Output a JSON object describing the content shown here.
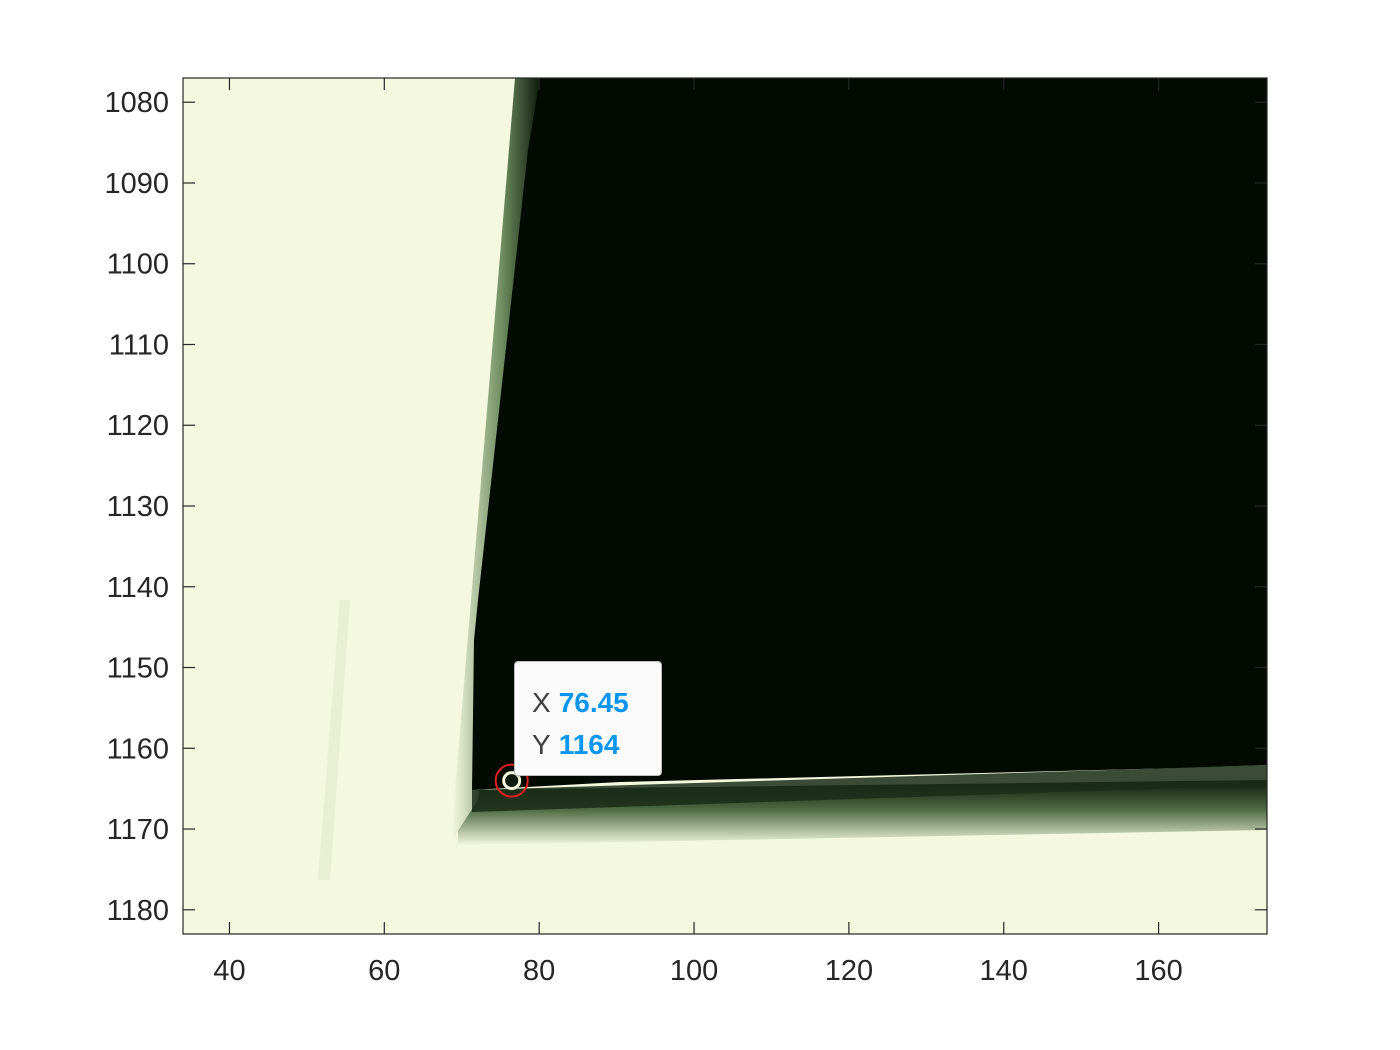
{
  "chart_data": {
    "type": "image",
    "title": "",
    "xlabel": "",
    "ylabel": "",
    "xlim": [
      34,
      174
    ],
    "ylim": [
      1083,
      1077
    ],
    "ylim_note": "y axis reversed (image coordinates)",
    "y_range": [
      1077,
      1183
    ],
    "x_ticks": [
      40,
      60,
      80,
      100,
      120,
      140,
      160
    ],
    "y_ticks": [
      1080,
      1090,
      1100,
      1110,
      1120,
      1130,
      1140,
      1150,
      1160,
      1170,
      1180
    ],
    "x_tick_labels": [
      "40",
      "60",
      "80",
      "100",
      "120",
      "140",
      "160"
    ],
    "y_tick_labels": [
      "1080",
      "1090",
      "1100",
      "1110",
      "1120",
      "1130",
      "1140",
      "1150",
      "1160",
      "1170",
      "1180"
    ],
    "image_regions": {
      "dark_region_corner": {
        "x": 70,
        "y": 1166
      },
      "dark_region_top_edge_x": 79,
      "colors": {
        "light": "#f3f8de",
        "dark": "#020a02",
        "shadow": "#5d7a4f"
      }
    },
    "datatip": {
      "x_label": "X",
      "x_value": "76.45",
      "y_label": "Y",
      "y_value": "1164",
      "point": {
        "x": 76.45,
        "y": 1164
      },
      "value_color": "#0a96f0",
      "marker_color": "#e02020"
    }
  }
}
